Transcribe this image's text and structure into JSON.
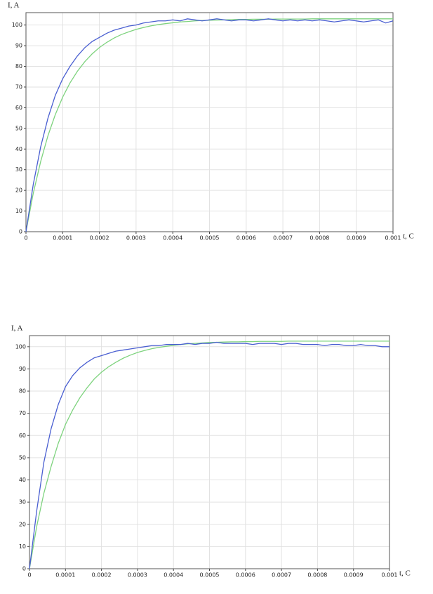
{
  "chart_data": [
    {
      "type": "line",
      "y_label": "I, A",
      "x_label": "t, C",
      "x": [
        0,
        2e-05,
        4e-05,
        6e-05,
        8e-05,
        0.0001,
        0.00012,
        0.00014,
        0.00016,
        0.00018,
        0.0002,
        0.00022,
        0.00024,
        0.00026,
        0.00028,
        0.0003,
        0.00032,
        0.00034,
        0.00036,
        0.00038,
        0.0004,
        0.00042,
        0.00044,
        0.00046,
        0.00048,
        0.0005,
        0.00052,
        0.00054,
        0.00056,
        0.00058,
        0.0006,
        0.00062,
        0.00064,
        0.00066,
        0.00068,
        0.0007,
        0.00072,
        0.00074,
        0.00076,
        0.00078,
        0.0008,
        0.00082,
        0.00084,
        0.00086,
        0.00088,
        0.0009,
        0.00092,
        0.00094,
        0.00096,
        0.00098,
        0.001
      ],
      "series": [
        {
          "color": "#4a5fd1",
          "values": [
            0,
            23,
            41,
            55,
            66,
            74,
            80,
            85,
            89,
            92,
            94,
            96,
            97.5,
            98.5,
            99.5,
            100,
            101,
            101.5,
            102,
            102,
            102.5,
            102,
            103,
            102.5,
            102,
            102.5,
            103,
            102.5,
            102,
            102.5,
            102.5,
            102,
            102.5,
            103,
            102.5,
            102,
            102.5,
            102,
            102.5,
            102,
            102.5,
            102,
            101.5,
            102,
            102.5,
            102,
            101.5,
            102,
            102.5,
            101,
            102
          ]
        },
        {
          "color": "#7ed37e",
          "values": [
            0,
            18.7,
            33.9,
            46.5,
            56.7,
            65.1,
            72,
            77.6,
            82.2,
            86,
            89.1,
            91.6,
            93.7,
            95.4,
            96.7,
            97.9,
            98.8,
            99.6,
            100.2,
            100.7,
            101.1,
            101.5,
            101.7,
            102,
            102.2,
            102.3,
            102.4,
            102.5,
            102.6,
            102.7,
            102.7,
            102.8,
            102.8,
            102.8,
            102.9,
            102.9,
            102.9,
            102.9,
            102.9,
            103,
            103,
            103,
            103,
            103,
            103,
            103,
            103,
            103,
            103,
            103,
            103
          ]
        }
      ],
      "xlim": [
        0,
        0.001
      ],
      "ylim": [
        0,
        106
      ],
      "xticks": [
        0,
        0.0001,
        0.0002,
        0.0003,
        0.0004,
        0.0005,
        0.0006,
        0.0007,
        0.0008,
        0.0009,
        0.001
      ],
      "yticks": [
        0,
        10,
        20,
        30,
        40,
        50,
        60,
        70,
        80,
        90,
        100
      ],
      "grid": true
    },
    {
      "type": "line",
      "y_label": "I, A",
      "x_label": "t, C",
      "x": [
        0,
        2e-05,
        4e-05,
        6e-05,
        8e-05,
        0.0001,
        0.00012,
        0.00014,
        0.00016,
        0.00018,
        0.0002,
        0.00022,
        0.00024,
        0.00026,
        0.00028,
        0.0003,
        0.00032,
        0.00034,
        0.00036,
        0.00038,
        0.0004,
        0.00042,
        0.00044,
        0.00046,
        0.00048,
        0.0005,
        0.00052,
        0.00054,
        0.00056,
        0.00058,
        0.0006,
        0.00062,
        0.00064,
        0.00066,
        0.00068,
        0.0007,
        0.00072,
        0.00074,
        0.00076,
        0.00078,
        0.0008,
        0.00082,
        0.00084,
        0.00086,
        0.00088,
        0.0009,
        0.00092,
        0.00094,
        0.00096,
        0.00098,
        0.001
      ],
      "series": [
        {
          "color": "#4a5fd1",
          "values": [
            0,
            26,
            48,
            63,
            74,
            82,
            87,
            90.5,
            93,
            95,
            96,
            97,
            98,
            98.5,
            99,
            99.5,
            100,
            100.5,
            100.5,
            101,
            101,
            101,
            101.5,
            101,
            101.5,
            101.5,
            102,
            101.5,
            101.5,
            101.5,
            101.5,
            101,
            101.5,
            101.5,
            101.5,
            101,
            101.5,
            101.5,
            101,
            101,
            101,
            100.5,
            101,
            101,
            100.5,
            100.5,
            101,
            100.5,
            100.5,
            100,
            100
          ]
        },
        {
          "color": "#7ed37e",
          "values": [
            0,
            19,
            34,
            46,
            56.5,
            65,
            71.5,
            77,
            81.5,
            85.5,
            88.5,
            91,
            93,
            94.8,
            96.2,
            97.4,
            98.3,
            99.1,
            99.7,
            100.2,
            100.6,
            101,
            101.3,
            101.5,
            101.7,
            101.9,
            102,
            102.1,
            102.2,
            102.2,
            102.3,
            102.3,
            102.4,
            102.4,
            102.4,
            102.4,
            102.5,
            102.5,
            102.5,
            102.5,
            102.5,
            102.5,
            102.5,
            102.5,
            102.5,
            102.5,
            102.5,
            102.5,
            102.5,
            102.5,
            102.5
          ]
        }
      ],
      "xlim": [
        0,
        0.001
      ],
      "ylim": [
        0,
        105
      ],
      "xticks": [
        0,
        0.0001,
        0.0002,
        0.0003,
        0.0004,
        0.0005,
        0.0006,
        0.0007,
        0.0008,
        0.0009,
        0.001
      ],
      "yticks": [
        0,
        10,
        20,
        30,
        40,
        50,
        60,
        70,
        80,
        90,
        100
      ],
      "grid": true
    }
  ]
}
